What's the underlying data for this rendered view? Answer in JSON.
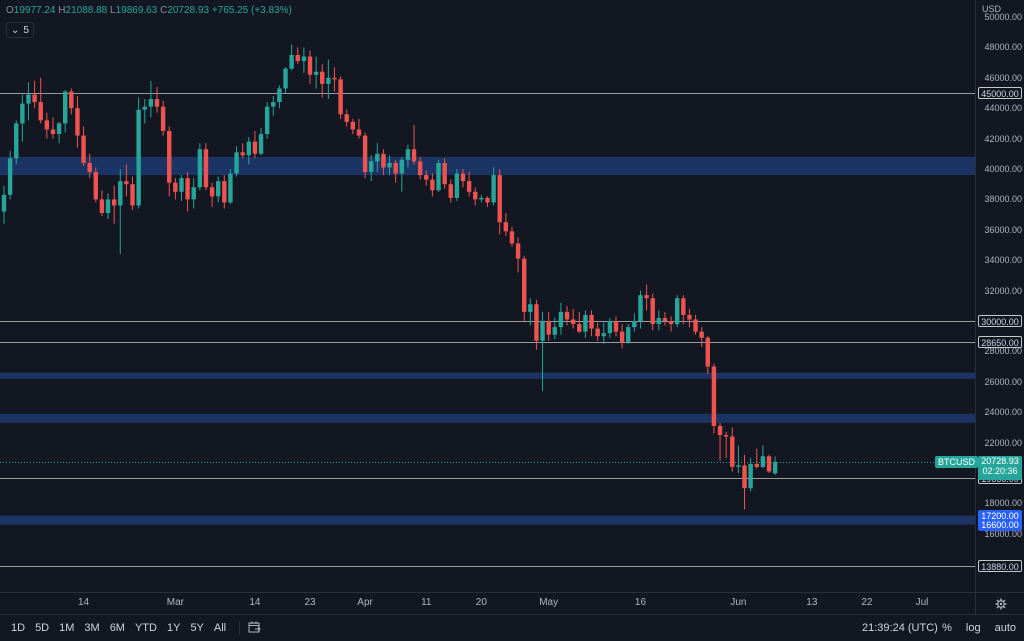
{
  "legend": {
    "o_label": "O",
    "o_value": "19977.24",
    "h_label": "H",
    "h_value": "21088.88",
    "l_label": "L",
    "l_value": "19869.63",
    "c_label": "C",
    "c_value": "20728.93",
    "change": "+765.25 (+3.83%)"
  },
  "collapse_count": "5",
  "currency": "USD",
  "symbol_tag": "BTCUSD",
  "current_price": {
    "value": "20728.93",
    "countdown": "02:20:36",
    "price": 20728.93
  },
  "colors": {
    "up": "#26a69a",
    "down": "#ef5350",
    "zone": "#1e3a6e",
    "hline": "#c8c8c8",
    "blue_label": "#2962ff"
  },
  "bottom_bar": {
    "timeframes": [
      "1D",
      "5D",
      "1M",
      "3M",
      "6M",
      "YTD",
      "1Y",
      "5Y",
      "All"
    ],
    "clock": "21:39:24 (UTC)",
    "pct": "%",
    "log": "log",
    "auto": "auto"
  },
  "chart_data": {
    "type": "candlestick",
    "symbol": "BTCUSD",
    "ylim": [
      13000,
      49000
    ],
    "y_ticks": [
      16000,
      18000,
      20000,
      22000,
      24000,
      26000,
      28000,
      30000,
      32000,
      34000,
      36000,
      38000,
      40000,
      42000,
      44000,
      46000,
      48000,
      50000
    ],
    "x_ticks": [
      {
        "label": "14",
        "day": 13
      },
      {
        "label": "Mar",
        "day": 28
      },
      {
        "label": "14",
        "day": 41
      },
      {
        "label": "23",
        "day": 50
      },
      {
        "label": "Apr",
        "day": 59
      },
      {
        "label": "11",
        "day": 69
      },
      {
        "label": "20",
        "day": 78
      },
      {
        "label": "May",
        "day": 89
      },
      {
        "label": "16",
        "day": 104
      },
      {
        "label": "Jun",
        "day": 120
      },
      {
        "label": "13",
        "day": 132
      },
      {
        "label": "22",
        "day": 141
      },
      {
        "label": "Jul",
        "day": 150
      }
    ],
    "horizontal_levels": [
      45000,
      30000,
      28650,
      19666,
      13880
    ],
    "level_labels": [
      {
        "price": 45000,
        "text": "45000.00",
        "style": "white"
      },
      {
        "price": 30000,
        "text": "30000.00",
        "style": "white"
      },
      {
        "price": 28650,
        "text": "28650.00",
        "style": "white"
      },
      {
        "price": 19666,
        "text": "19666.00",
        "style": "white"
      },
      {
        "price": 17200,
        "text": "17200.00",
        "style": "blue"
      },
      {
        "price": 16600,
        "text": "16600.00",
        "style": "blue"
      },
      {
        "price": 13880,
        "text": "13880.00",
        "style": "white"
      }
    ],
    "zones": [
      [
        39600,
        40800
      ],
      [
        26200,
        26600
      ],
      [
        23300,
        23900
      ],
      [
        16600,
        17200
      ]
    ],
    "candles": [
      [
        37200,
        38900,
        36400,
        38300
      ],
      [
        38300,
        41200,
        38000,
        40700
      ],
      [
        40700,
        43200,
        40300,
        43000
      ],
      [
        43000,
        44900,
        41800,
        44300
      ],
      [
        44300,
        45700,
        43200,
        44900
      ],
      [
        44900,
        45800,
        44000,
        44400
      ],
      [
        44400,
        46000,
        43000,
        43200
      ],
      [
        43200,
        43700,
        42000,
        42600
      ],
      [
        42600,
        43400,
        42000,
        42300
      ],
      [
        42300,
        43100,
        41700,
        43000
      ],
      [
        43000,
        45200,
        42400,
        45100
      ],
      [
        45100,
        45300,
        43600,
        44000
      ],
      [
        44000,
        44800,
        41400,
        42200
      ],
      [
        42200,
        42800,
        40200,
        40400
      ],
      [
        40400,
        41000,
        39400,
        39800
      ],
      [
        39800,
        40100,
        37800,
        38000
      ],
      [
        38000,
        38600,
        36900,
        37100
      ],
      [
        37100,
        38400,
        36700,
        38000
      ],
      [
        38000,
        38900,
        36400,
        37600
      ],
      [
        37600,
        40000,
        34400,
        39200
      ],
      [
        39200,
        40300,
        38200,
        39000
      ],
      [
        39000,
        39500,
        37300,
        37600
      ],
      [
        37600,
        44700,
        37400,
        43900
      ],
      [
        43900,
        44600,
        43000,
        44100
      ],
      [
        44100,
        45800,
        43400,
        44600
      ],
      [
        44600,
        45400,
        43700,
        44100
      ],
      [
        44100,
        44500,
        42200,
        42500
      ],
      [
        42500,
        42800,
        38200,
        39100
      ],
      [
        39100,
        39400,
        38000,
        38500
      ],
      [
        38500,
        39600,
        37900,
        39400
      ],
      [
        39400,
        39800,
        37200,
        38000
      ],
      [
        38000,
        39400,
        37400,
        38800
      ],
      [
        38800,
        41700,
        38600,
        41300
      ],
      [
        41300,
        41700,
        38600,
        38800
      ],
      [
        38800,
        39100,
        37500,
        38200
      ],
      [
        38200,
        39500,
        37800,
        39200
      ],
      [
        39200,
        39600,
        37400,
        37800
      ],
      [
        37800,
        40000,
        37700,
        39700
      ],
      [
        39700,
        41500,
        39500,
        41100
      ],
      [
        41100,
        41700,
        40700,
        40900
      ],
      [
        40900,
        42100,
        40300,
        41800
      ],
      [
        41800,
        42500,
        40700,
        41000
      ],
      [
        41000,
        42700,
        40900,
        42300
      ],
      [
        42300,
        44400,
        42000,
        44100
      ],
      [
        44100,
        44800,
        43500,
        44400
      ],
      [
        44400,
        45500,
        44000,
        45300
      ],
      [
        45300,
        46700,
        45000,
        46600
      ],
      [
        46600,
        48200,
        46500,
        47500
      ],
      [
        47500,
        48000,
        46900,
        47100
      ],
      [
        47100,
        48000,
        46300,
        47400
      ],
      [
        47400,
        47800,
        45600,
        46200
      ],
      [
        46200,
        47400,
        45300,
        46400
      ],
      [
        46400,
        46900,
        44700,
        45600
      ],
      [
        45600,
        47200,
        44600,
        46000
      ],
      [
        46000,
        46700,
        45100,
        45900
      ],
      [
        45900,
        46100,
        43300,
        43600
      ],
      [
        43600,
        43900,
        42800,
        43100
      ],
      [
        43100,
        43300,
        42300,
        42600
      ],
      [
        42600,
        43300,
        42000,
        42200
      ],
      [
        42200,
        42400,
        39400,
        39800
      ],
      [
        39800,
        40900,
        39200,
        40500
      ],
      [
        40500,
        41700,
        39800,
        41000
      ],
      [
        41000,
        41300,
        39600,
        40100
      ],
      [
        40100,
        40900,
        39600,
        40400
      ],
      [
        40400,
        40600,
        39100,
        39700
      ],
      [
        39700,
        40800,
        38500,
        40600
      ],
      [
        40600,
        41600,
        40100,
        41300
      ],
      [
        41300,
        42900,
        40300,
        40500
      ],
      [
        40500,
        40800,
        39300,
        39600
      ],
      [
        39600,
        39900,
        38900,
        39300
      ],
      [
        39300,
        39700,
        38200,
        38600
      ],
      [
        38600,
        40600,
        38500,
        40400
      ],
      [
        40400,
        40700,
        38700,
        39000
      ],
      [
        39000,
        39300,
        37800,
        38100
      ],
      [
        38100,
        40000,
        37900,
        39700
      ],
      [
        39700,
        40000,
        38800,
        39200
      ],
      [
        39200,
        39800,
        38200,
        38500
      ],
      [
        38500,
        38800,
        37600,
        38000
      ],
      [
        38000,
        38300,
        37800,
        38100
      ],
      [
        38100,
        38200,
        37500,
        37800
      ],
      [
        37800,
        40100,
        37600,
        39600
      ],
      [
        39600,
        40000,
        35700,
        36500
      ],
      [
        36500,
        37100,
        35600,
        35900
      ],
      [
        35900,
        36200,
        34900,
        35100
      ],
      [
        35100,
        35500,
        33200,
        34100
      ],
      [
        34100,
        34300,
        30000,
        30600
      ],
      [
        30600,
        31500,
        29700,
        31100
      ],
      [
        31100,
        31400,
        28100,
        28700
      ],
      [
        28700,
        30600,
        25400,
        30000
      ],
      [
        30000,
        30600,
        28700,
        29100
      ],
      [
        29100,
        30200,
        28800,
        29600
      ],
      [
        29600,
        31200,
        29100,
        30600
      ],
      [
        30600,
        31000,
        29700,
        30100
      ],
      [
        30100,
        30800,
        29500,
        29800
      ],
      [
        29800,
        30600,
        29200,
        29300
      ],
      [
        29300,
        30700,
        28900,
        30400
      ],
      [
        30400,
        30700,
        29000,
        29500
      ],
      [
        29500,
        29900,
        28700,
        29000
      ],
      [
        29000,
        29900,
        28500,
        29200
      ],
      [
        29200,
        30200,
        28900,
        30000
      ],
      [
        30000,
        30300,
        29000,
        29300
      ],
      [
        29300,
        29800,
        28200,
        28600
      ],
      [
        28600,
        29800,
        28500,
        29600
      ],
      [
        29600,
        30500,
        29300,
        30000
      ],
      [
        30000,
        32000,
        29500,
        31700
      ],
      [
        31700,
        32400,
        30700,
        31500
      ],
      [
        31500,
        31800,
        29400,
        29800
      ],
      [
        29800,
        30700,
        29400,
        30200
      ],
      [
        30200,
        30600,
        29700,
        30000
      ],
      [
        30000,
        30300,
        29300,
        29800
      ],
      [
        29800,
        31700,
        29600,
        31500
      ],
      [
        31500,
        31700,
        29800,
        30400
      ],
      [
        30400,
        30800,
        29600,
        30100
      ],
      [
        30100,
        30400,
        29100,
        29300
      ],
      [
        29300,
        29600,
        28300,
        28900
      ],
      [
        28900,
        29000,
        26500,
        27000
      ],
      [
        27000,
        27200,
        22600,
        23100
      ],
      [
        23100,
        23300,
        20800,
        22500
      ],
      [
        22500,
        22700,
        21000,
        22400
      ],
      [
        22400,
        23000,
        20100,
        20400
      ],
      [
        20400,
        21800,
        20000,
        20500
      ],
      [
        20500,
        21200,
        17600,
        19000
      ],
      [
        19000,
        21000,
        18800,
        20600
      ],
      [
        20600,
        21600,
        20300,
        20400
      ],
      [
        20400,
        21800,
        20300,
        21100
      ],
      [
        21100,
        21200,
        20000,
        20100
      ],
      [
        19977,
        21089,
        19870,
        20729
      ]
    ]
  }
}
